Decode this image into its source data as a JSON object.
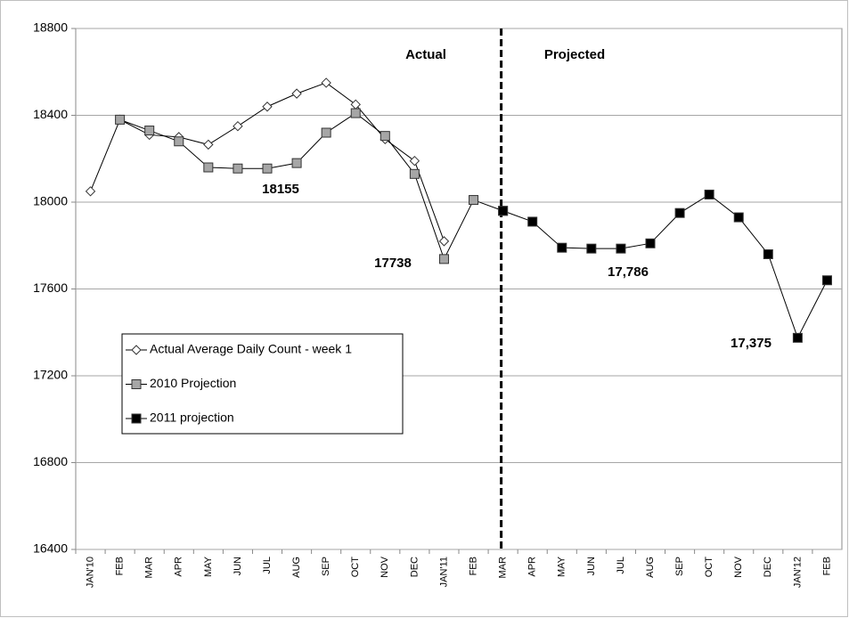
{
  "chart_data": {
    "type": "line",
    "categories": [
      "JAN'10",
      "FEB",
      "MAR",
      "APR",
      "MAY",
      "JUN",
      "JUL",
      "AUG",
      "SEP",
      "OCT",
      "NOV",
      "DEC",
      "JAN'11",
      "FEB",
      "MAR",
      "APR",
      "MAY",
      "JUN",
      "JUL",
      "AUG",
      "SEP",
      "OCT",
      "NOV",
      "DEC",
      "JAN'12",
      "FEB"
    ],
    "series": [
      {
        "name": "Actual Average Daily Count - week 1",
        "color": "#ffffff",
        "marker": "diamond",
        "values": [
          18050,
          18380,
          18310,
          18300,
          18265,
          18350,
          18440,
          18500,
          18550,
          18450,
          18290,
          18190,
          17820,
          null,
          null,
          null,
          null,
          null,
          null,
          null,
          null,
          null,
          null,
          null,
          null,
          null
        ]
      },
      {
        "name": "2010 Projection",
        "color": "#a6a6a6",
        "marker": "square",
        "values": [
          null,
          18380,
          18330,
          18280,
          18160,
          18155,
          18155,
          18180,
          18320,
          18410,
          18305,
          18130,
          17738,
          18010,
          17960,
          null,
          null,
          null,
          null,
          null,
          null,
          null,
          null,
          null,
          null,
          null
        ]
      },
      {
        "name": "2011 projection",
        "color": "#000000",
        "marker": "square",
        "values": [
          null,
          null,
          null,
          null,
          null,
          null,
          null,
          null,
          null,
          null,
          null,
          null,
          null,
          null,
          17960,
          17910,
          17790,
          17786,
          17786,
          17810,
          17950,
          18035,
          17930,
          17760,
          17375,
          17640
        ]
      }
    ],
    "annotations": [
      "Actual",
      "Projected",
      "18155",
      "17738",
      "17,786",
      "17,375"
    ],
    "ylim": [
      16400,
      18800
    ],
    "yticks": [
      16400,
      16800,
      17200,
      17600,
      18000,
      18400,
      18800
    ],
    "grid": true
  }
}
